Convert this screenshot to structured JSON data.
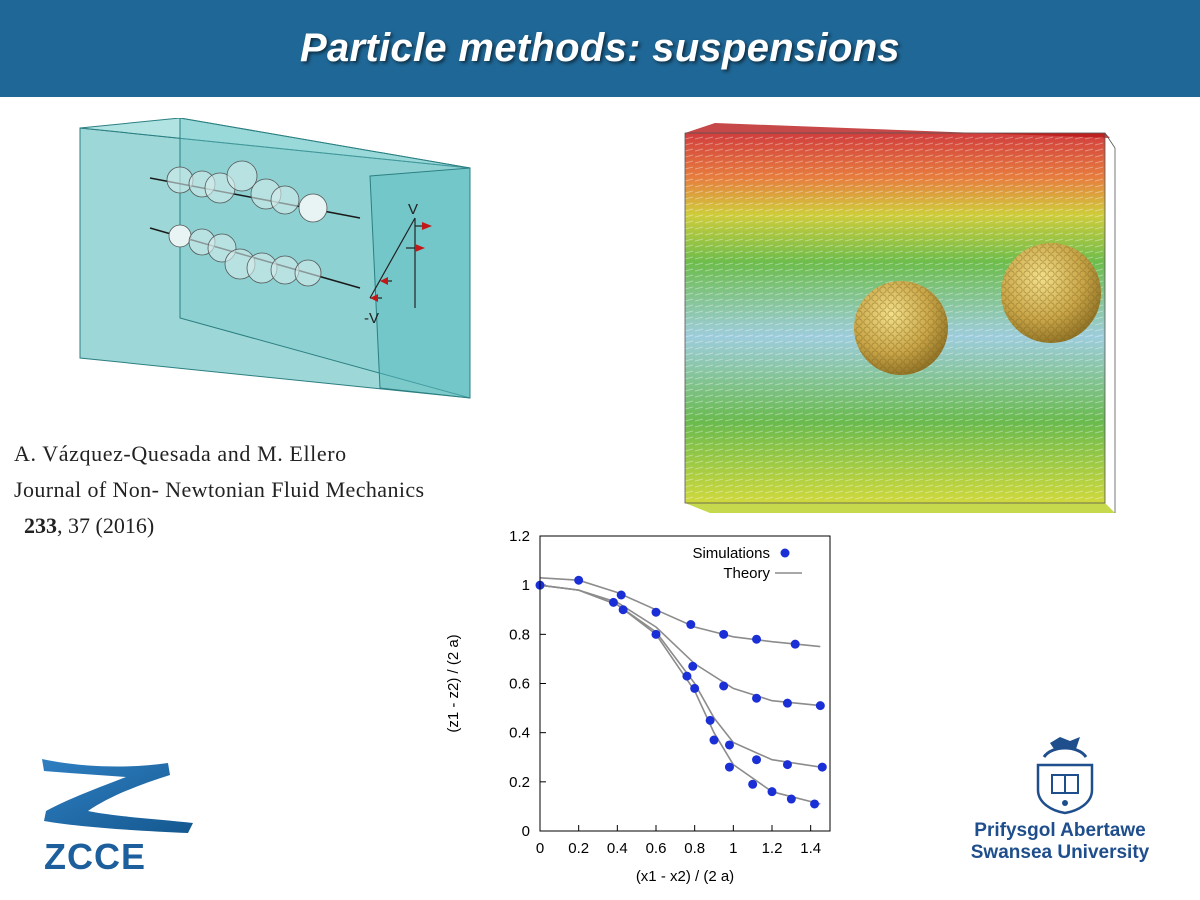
{
  "slide": {
    "title": "Particle methods: suspensions"
  },
  "schematic": {
    "v_top": "V",
    "v_bottom": "-V"
  },
  "citation": {
    "authors": "A. Vázquez-Quesada and M. Ellero",
    "journal": "Journal of Non- Newtonian Fluid Mechanics",
    "volume": "233",
    "rest": ", 37 (2016)"
  },
  "logos": {
    "zcce": "ZCCE",
    "university_welsh": "Prifysgol Abertawe",
    "university_english": "Swansea University"
  },
  "chart_data": {
    "type": "scatter",
    "xlabel": "(x1 - x2) / (2 a)",
    "ylabel": "(z1 - z2) / (2 a)",
    "xlim": [
      0,
      1.5
    ],
    "ylim": [
      0,
      1.2
    ],
    "xticks": [
      "0",
      "0.2",
      "0.4",
      "0.6",
      "0.8",
      "1",
      "1.2",
      "1.4"
    ],
    "yticks": [
      "0",
      "0.2",
      "0.4",
      "0.6",
      "0.8",
      "1",
      "1.2"
    ],
    "legend_position": "top-right",
    "colors": {
      "points": "#1a2fd6",
      "theory": "#8c8c8c"
    },
    "series": [
      {
        "name": "Simulations",
        "kind": "points",
        "points": [
          [
            0,
            1.0
          ],
          [
            0.2,
            1.02
          ],
          [
            0.38,
            0.93
          ],
          [
            0.42,
            0.96
          ],
          [
            0.43,
            0.9
          ],
          [
            0.6,
            0.89
          ],
          [
            0.6,
            0.8
          ],
          [
            0.78,
            0.84
          ],
          [
            0.76,
            0.63
          ],
          [
            0.79,
            0.67
          ],
          [
            0.8,
            0.58
          ],
          [
            0.88,
            0.45
          ],
          [
            0.9,
            0.37
          ],
          [
            0.95,
            0.8
          ],
          [
            0.95,
            0.59
          ],
          [
            0.98,
            0.35
          ],
          [
            0.98,
            0.26
          ],
          [
            1.12,
            0.78
          ],
          [
            1.12,
            0.54
          ],
          [
            1.12,
            0.29
          ],
          [
            1.1,
            0.19
          ],
          [
            1.2,
            0.16
          ],
          [
            1.28,
            0.52
          ],
          [
            1.28,
            0.27
          ],
          [
            1.3,
            0.13
          ],
          [
            1.32,
            0.76
          ],
          [
            1.45,
            0.51
          ],
          [
            1.46,
            0.26
          ],
          [
            1.42,
            0.11
          ]
        ]
      },
      {
        "name": "Theory",
        "kind": "line",
        "curves": [
          [
            [
              0,
              1.03
            ],
            [
              0.2,
              1.02
            ],
            [
              0.4,
              0.97
            ],
            [
              0.6,
              0.9
            ],
            [
              0.8,
              0.83
            ],
            [
              1.0,
              0.79
            ],
            [
              1.2,
              0.77
            ],
            [
              1.45,
              0.75
            ]
          ],
          [
            [
              0,
              1.0
            ],
            [
              0.2,
              0.98
            ],
            [
              0.4,
              0.93
            ],
            [
              0.6,
              0.83
            ],
            [
              0.8,
              0.68
            ],
            [
              1.0,
              0.58
            ],
            [
              1.2,
              0.53
            ],
            [
              1.45,
              0.51
            ]
          ],
          [
            [
              0,
              1.0
            ],
            [
              0.2,
              0.98
            ],
            [
              0.4,
              0.92
            ],
            [
              0.6,
              0.81
            ],
            [
              0.8,
              0.6
            ],
            [
              0.9,
              0.46
            ],
            [
              1.0,
              0.36
            ],
            [
              1.2,
              0.29
            ],
            [
              1.45,
              0.26
            ]
          ],
          [
            [
              0,
              1.0
            ],
            [
              0.2,
              0.98
            ],
            [
              0.4,
              0.92
            ],
            [
              0.6,
              0.8
            ],
            [
              0.8,
              0.57
            ],
            [
              0.9,
              0.4
            ],
            [
              1.0,
              0.27
            ],
            [
              1.2,
              0.16
            ],
            [
              1.45,
              0.11
            ]
          ]
        ]
      }
    ]
  }
}
